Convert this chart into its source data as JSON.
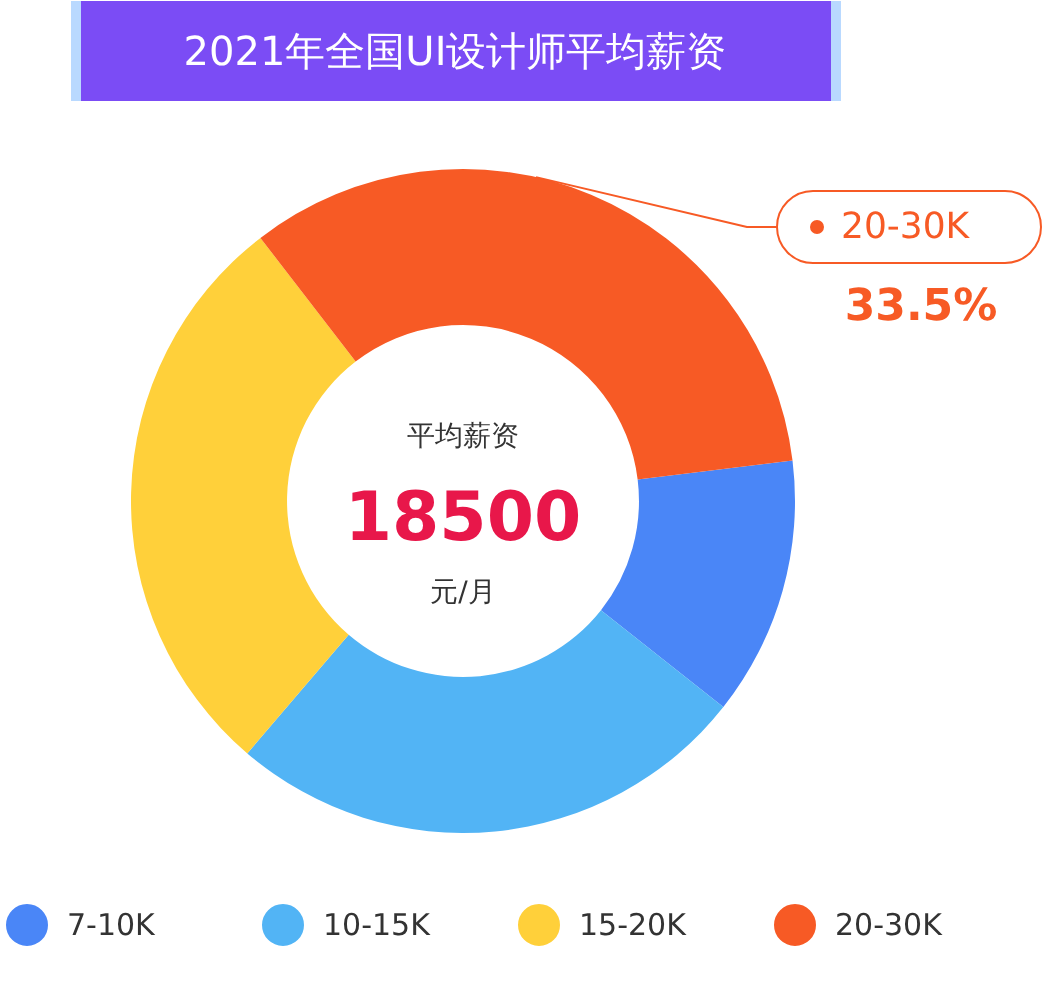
{
  "chart_data": {
    "type": "donut",
    "title": "2021年全国UI设计师平均薪资",
    "categories": [
      "7-10K",
      "10-15K",
      "15-20K",
      "20-30K"
    ],
    "values": [
      12.6,
      25.6,
      28.3,
      33.5
    ],
    "colors": [
      "#4a86f7",
      "#52b4f5",
      "#ffd03a",
      "#f75a25"
    ],
    "value_labels": [
      null,
      null,
      null,
      "33.5%"
    ],
    "annotations": [
      "平均薪资",
      "18500",
      "元/月"
    ],
    "legend": "bottom"
  }
}
